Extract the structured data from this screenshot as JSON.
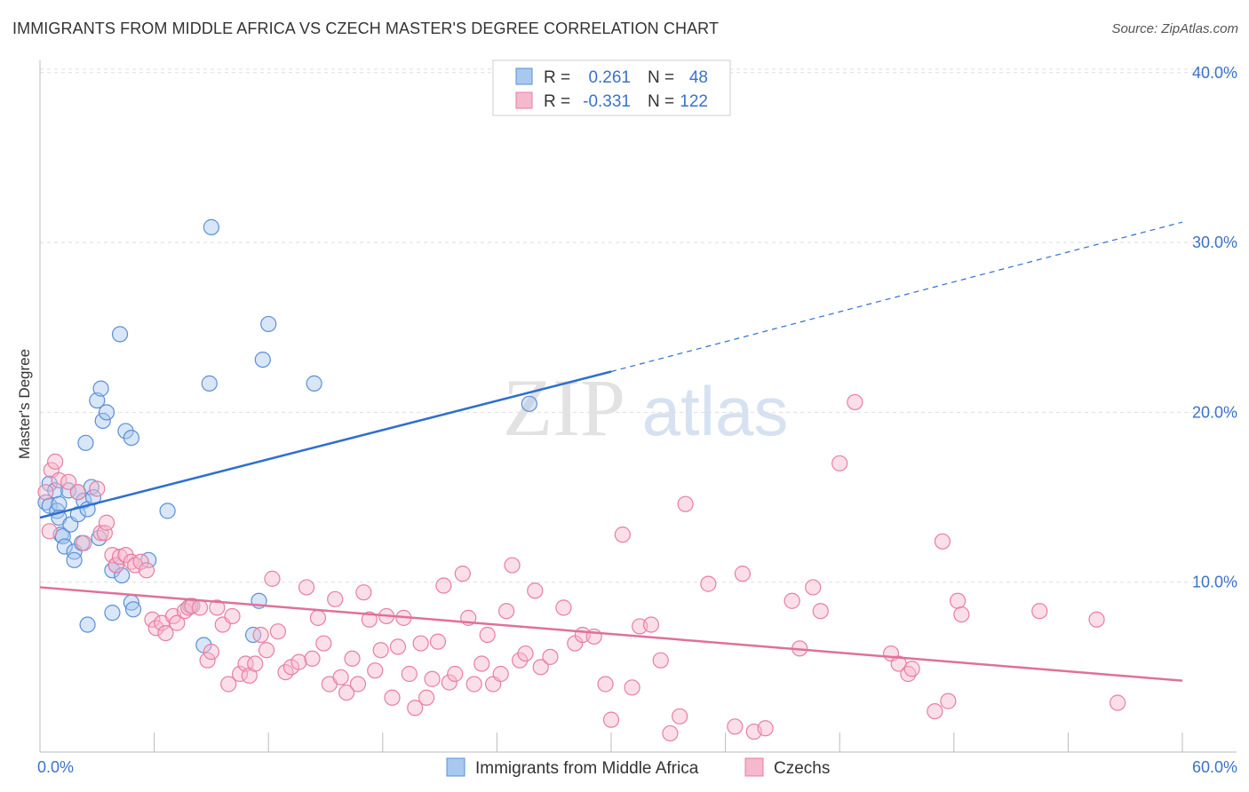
{
  "header": {
    "title": "IMMIGRANTS FROM MIDDLE AFRICA VS CZECH MASTER'S DEGREE CORRELATION CHART",
    "source": "Source: ZipAtlas.com"
  },
  "watermark": {
    "zip": "ZIP",
    "atlas": "atlas"
  },
  "colors": {
    "blue_fill": "#a9c8f0",
    "blue_stroke": "#5b8fd6",
    "blue_line": "#2f6fcf",
    "pink_fill": "#f6b8cc",
    "pink_stroke": "#e77ea0",
    "pink_line": "#e0709a",
    "tick_color": "#3a72c8",
    "grid": "#dddddd"
  },
  "stats_legend": {
    "rows": [
      {
        "r_label": "R =",
        "r_value": "0.261",
        "n_label": "N =",
        "n_value": "48",
        "color": "#a9c8f0",
        "stroke": "#5b8fd6"
      },
      {
        "r_label": "R =",
        "r_value": "-0.331",
        "n_label": "N =",
        "n_value": "122",
        "color": "#f6b8cc",
        "stroke": "#e77ea0"
      }
    ]
  },
  "chart_data": {
    "type": "scatter",
    "title": "IMMIGRANTS FROM MIDDLE AFRICA VS CZECH MASTER'S DEGREE CORRELATION CHART",
    "xlabel": "",
    "ylabel": "Master's Degree",
    "xlim": [
      0,
      60
    ],
    "ylim": [
      0,
      42
    ],
    "x_tick_labels": {
      "min": "0.0%",
      "max": "60.0%"
    },
    "y_ticks": [
      {
        "value": 10,
        "label": "10.0%"
      },
      {
        "value": 20,
        "label": "20.0%"
      },
      {
        "value": 30,
        "label": "30.0%"
      },
      {
        "value": 40,
        "label": "40.0%"
      }
    ],
    "grid": true,
    "legend_position": "bottom",
    "series": [
      {
        "name": "Immigrants from Middle Africa",
        "color": "#a9c8f0",
        "trend": {
          "x_start": 0,
          "y_start": 13.8,
          "x_solid_end": 30,
          "y_solid_end": 22.4,
          "x_end": 60,
          "y_end": 31.2
        },
        "points": [
          [
            0.3,
            14.7
          ],
          [
            0.5,
            14.5
          ],
          [
            0.5,
            15.8
          ],
          [
            0.8,
            15.4
          ],
          [
            0.9,
            14.2
          ],
          [
            1.0,
            14.6
          ],
          [
            1.0,
            13.8
          ],
          [
            1.1,
            12.8
          ],
          [
            1.2,
            12.7
          ],
          [
            1.3,
            12.1
          ],
          [
            1.5,
            15.4
          ],
          [
            1.6,
            13.4
          ],
          [
            1.8,
            11.8
          ],
          [
            1.8,
            11.3
          ],
          [
            2.0,
            14.0
          ],
          [
            2.0,
            15.3
          ],
          [
            2.2,
            12.3
          ],
          [
            2.3,
            14.8
          ],
          [
            2.4,
            18.2
          ],
          [
            2.5,
            14.3
          ],
          [
            2.5,
            7.5
          ],
          [
            2.7,
            15.6
          ],
          [
            2.8,
            15.0
          ],
          [
            3.0,
            20.7
          ],
          [
            3.1,
            12.6
          ],
          [
            3.2,
            21.4
          ],
          [
            3.3,
            19.5
          ],
          [
            3.5,
            20.0
          ],
          [
            3.8,
            8.2
          ],
          [
            3.8,
            10.7
          ],
          [
            4.0,
            11.0
          ],
          [
            4.2,
            24.6
          ],
          [
            4.3,
            10.4
          ],
          [
            4.5,
            18.9
          ],
          [
            4.8,
            18.5
          ],
          [
            4.8,
            8.8
          ],
          [
            4.9,
            8.4
          ],
          [
            5.7,
            11.3
          ],
          [
            6.7,
            14.2
          ],
          [
            7.9,
            8.6
          ],
          [
            8.6,
            6.3
          ],
          [
            8.9,
            21.7
          ],
          [
            9.0,
            30.9
          ],
          [
            11.2,
            6.9
          ],
          [
            11.5,
            8.9
          ],
          [
            11.7,
            23.1
          ],
          [
            12.0,
            25.2
          ],
          [
            14.4,
            21.7
          ],
          [
            25.7,
            20.5
          ]
        ]
      },
      {
        "name": "Czechs",
        "color": "#f6b8cc",
        "trend": {
          "x_start": 0,
          "y_start": 9.7,
          "x_end": 60,
          "y_end": 4.2
        },
        "points": [
          [
            0.3,
            15.3
          ],
          [
            0.5,
            13.0
          ],
          [
            0.6,
            16.6
          ],
          [
            0.8,
            17.1
          ],
          [
            1.0,
            16.0
          ],
          [
            1.5,
            15.9
          ],
          [
            2.0,
            15.3
          ],
          [
            2.3,
            12.3
          ],
          [
            3.0,
            15.5
          ],
          [
            3.2,
            12.9
          ],
          [
            3.4,
            12.9
          ],
          [
            3.5,
            13.5
          ],
          [
            3.8,
            11.6
          ],
          [
            4.0,
            11.0
          ],
          [
            4.2,
            11.5
          ],
          [
            4.5,
            11.6
          ],
          [
            4.8,
            11.2
          ],
          [
            5.0,
            11.0
          ],
          [
            5.3,
            11.2
          ],
          [
            5.6,
            10.7
          ],
          [
            5.9,
            7.8
          ],
          [
            6.1,
            7.3
          ],
          [
            6.4,
            7.6
          ],
          [
            6.6,
            7.0
          ],
          [
            7.0,
            8.0
          ],
          [
            7.2,
            7.6
          ],
          [
            7.6,
            8.3
          ],
          [
            7.8,
            8.5
          ],
          [
            8.0,
            8.6
          ],
          [
            8.4,
            8.5
          ],
          [
            8.8,
            5.4
          ],
          [
            9.0,
            5.9
          ],
          [
            9.3,
            8.5
          ],
          [
            9.6,
            7.5
          ],
          [
            9.9,
            4.0
          ],
          [
            10.1,
            8.0
          ],
          [
            10.5,
            4.6
          ],
          [
            10.8,
            5.2
          ],
          [
            11.0,
            4.5
          ],
          [
            11.3,
            5.2
          ],
          [
            11.6,
            6.9
          ],
          [
            11.9,
            6.0
          ],
          [
            12.2,
            10.2
          ],
          [
            12.5,
            7.1
          ],
          [
            12.9,
            4.7
          ],
          [
            13.2,
            5.0
          ],
          [
            13.6,
            5.3
          ],
          [
            14.0,
            9.7
          ],
          [
            14.3,
            5.5
          ],
          [
            14.6,
            7.9
          ],
          [
            14.9,
            6.4
          ],
          [
            15.2,
            4.0
          ],
          [
            15.5,
            9.0
          ],
          [
            15.8,
            4.4
          ],
          [
            16.1,
            3.5
          ],
          [
            16.4,
            5.5
          ],
          [
            16.7,
            4.0
          ],
          [
            17.0,
            9.4
          ],
          [
            17.3,
            7.8
          ],
          [
            17.6,
            4.8
          ],
          [
            17.9,
            6.0
          ],
          [
            18.2,
            8.0
          ],
          [
            18.5,
            3.2
          ],
          [
            18.8,
            6.2
          ],
          [
            19.1,
            7.9
          ],
          [
            19.4,
            4.6
          ],
          [
            19.7,
            2.6
          ],
          [
            20.0,
            6.4
          ],
          [
            20.3,
            3.2
          ],
          [
            20.6,
            4.3
          ],
          [
            20.9,
            6.5
          ],
          [
            21.2,
            9.8
          ],
          [
            21.5,
            4.1
          ],
          [
            21.8,
            4.6
          ],
          [
            22.2,
            10.5
          ],
          [
            22.5,
            7.9
          ],
          [
            22.8,
            4.0
          ],
          [
            23.2,
            5.2
          ],
          [
            23.5,
            6.9
          ],
          [
            23.8,
            4.0
          ],
          [
            24.2,
            4.6
          ],
          [
            24.5,
            8.3
          ],
          [
            24.8,
            11.0
          ],
          [
            25.2,
            5.4
          ],
          [
            25.5,
            5.8
          ],
          [
            26.0,
            9.5
          ],
          [
            26.3,
            5.0
          ],
          [
            26.8,
            5.6
          ],
          [
            27.5,
            8.5
          ],
          [
            28.1,
            6.4
          ],
          [
            28.5,
            6.9
          ],
          [
            29.1,
            6.8
          ],
          [
            29.7,
            4.0
          ],
          [
            30.0,
            1.9
          ],
          [
            30.6,
            12.8
          ],
          [
            31.1,
            3.8
          ],
          [
            31.5,
            7.4
          ],
          [
            32.1,
            7.5
          ],
          [
            32.6,
            5.4
          ],
          [
            33.1,
            1.1
          ],
          [
            33.6,
            2.1
          ],
          [
            33.9,
            14.6
          ],
          [
            35.1,
            9.9
          ],
          [
            36.5,
            1.5
          ],
          [
            36.9,
            10.5
          ],
          [
            37.5,
            1.2
          ],
          [
            38.1,
            1.4
          ],
          [
            39.5,
            8.9
          ],
          [
            39.9,
            6.1
          ],
          [
            40.6,
            9.7
          ],
          [
            41.0,
            8.3
          ],
          [
            42.0,
            17.0
          ],
          [
            42.8,
            20.6
          ],
          [
            44.7,
            5.8
          ],
          [
            45.1,
            5.2
          ],
          [
            45.6,
            4.6
          ],
          [
            45.8,
            4.9
          ],
          [
            47.0,
            2.4
          ],
          [
            47.4,
            12.4
          ],
          [
            47.7,
            3.0
          ],
          [
            48.2,
            8.9
          ],
          [
            48.4,
            8.1
          ],
          [
            52.5,
            8.3
          ],
          [
            55.5,
            7.8
          ],
          [
            56.6,
            2.9
          ]
        ]
      }
    ]
  },
  "bottom_legend": {
    "items": [
      {
        "label": "Immigrants from Middle Africa",
        "color": "#a9c8f0",
        "stroke": "#5b8fd6"
      },
      {
        "label": "Czechs",
        "color": "#f6b8cc",
        "stroke": "#e77ea0"
      }
    ]
  }
}
